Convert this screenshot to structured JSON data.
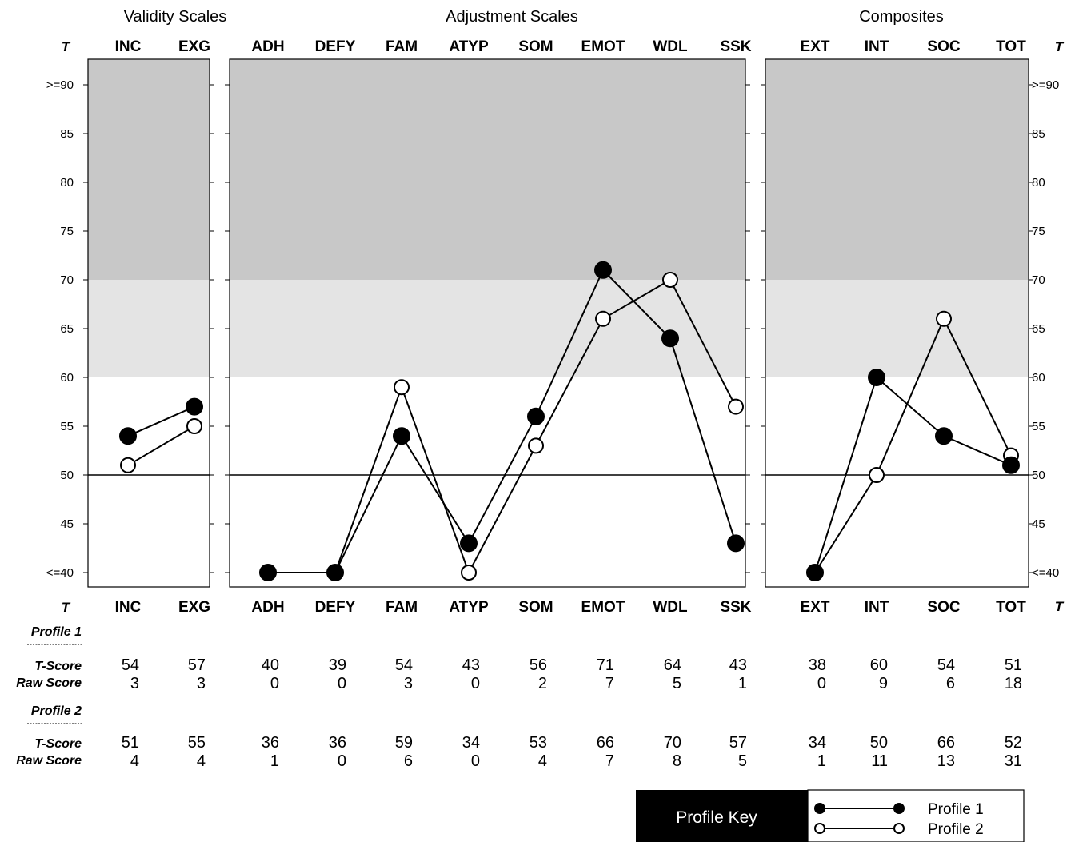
{
  "chart_data": {
    "type": "line",
    "groups": [
      {
        "title": "Validity Scales",
        "scales": [
          "INC",
          "EXG"
        ]
      },
      {
        "title": "Adjustment Scales",
        "scales": [
          "ADH",
          "DEFY",
          "FAM",
          "ATYP",
          "SOM",
          "EMOT",
          "WDL",
          "SSK"
        ]
      },
      {
        "title": "Composites",
        "scales": [
          "EXT",
          "INT",
          "SOC",
          "TOT"
        ]
      }
    ],
    "t_axis_label": "T",
    "y_ticks": [
      {
        "value": 90,
        "label": ">=90"
      },
      {
        "value": 85,
        "label": "85"
      },
      {
        "value": 80,
        "label": "80"
      },
      {
        "value": 75,
        "label": "75"
      },
      {
        "value": 70,
        "label": "70"
      },
      {
        "value": 65,
        "label": "65"
      },
      {
        "value": 60,
        "label": "60"
      },
      {
        "value": 55,
        "label": "55"
      },
      {
        "value": 50,
        "label": "50"
      },
      {
        "value": 45,
        "label": "45"
      },
      {
        "value": 40,
        "label": "<=40"
      }
    ],
    "ylim": [
      40,
      90
    ],
    "bands": [
      {
        "from": 70,
        "to": 90,
        "color": "#c8c8c8"
      },
      {
        "from": 60,
        "to": 70,
        "color": "#e4e4e4"
      }
    ],
    "reference_line": 50,
    "series": [
      {
        "name": "Profile 1",
        "marker": "filled",
        "t_scores": [
          54,
          57,
          40,
          39,
          54,
          43,
          56,
          71,
          64,
          43,
          38,
          60,
          54,
          51
        ],
        "raw_scores": [
          3,
          3,
          0,
          0,
          3,
          0,
          2,
          7,
          5,
          1,
          0,
          9,
          6,
          18
        ]
      },
      {
        "name": "Profile 2",
        "marker": "open",
        "t_scores": [
          51,
          55,
          36,
          36,
          59,
          34,
          53,
          66,
          70,
          57,
          34,
          50,
          66,
          52
        ],
        "raw_scores": [
          4,
          4,
          1,
          0,
          6,
          0,
          4,
          7,
          8,
          5,
          1,
          11,
          13,
          31
        ]
      }
    ],
    "row_labels": {
      "t_score": "T-Score",
      "raw_score": "Raw Score"
    },
    "profile_key_title": "Profile Key"
  }
}
